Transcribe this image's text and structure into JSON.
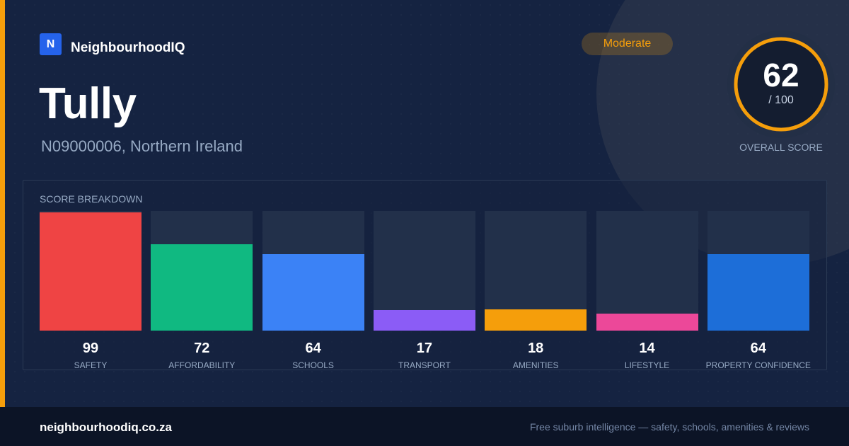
{
  "brand": {
    "logo_letter": "N",
    "name": "NeighbourhoodIQ"
  },
  "header": {
    "title": "Tully",
    "subtitle": "N09000006, Northern Ireland"
  },
  "badge": {
    "label": "Moderate",
    "color": "#f59e0b"
  },
  "overall": {
    "score": "62",
    "max_label": "/ 100",
    "label": "OVERALL SCORE",
    "value": 62,
    "max": 100,
    "ring_color": "#f59e0b"
  },
  "breakdown": {
    "title": "SCORE BREAKDOWN",
    "items": [
      {
        "label": "SAFETY",
        "score": "99",
        "value": 99,
        "color": "#ef4444"
      },
      {
        "label": "AFFORDABILITY",
        "score": "72",
        "value": 72,
        "color": "#10b981"
      },
      {
        "label": "SCHOOLS",
        "score": "64",
        "value": 64,
        "color": "#3b82f6"
      },
      {
        "label": "TRANSPORT",
        "score": "17",
        "value": 17,
        "color": "#8b5cf6"
      },
      {
        "label": "AMENITIES",
        "score": "18",
        "value": 18,
        "color": "#f59e0b"
      },
      {
        "label": "LIFESTYLE",
        "score": "14",
        "value": 14,
        "color": "#ec4899"
      },
      {
        "label": "PROPERTY CONFIDENCE",
        "score": "64",
        "value": 64,
        "color": "#1d6ed8"
      }
    ]
  },
  "footer": {
    "domain": "neighbourhoodiq.co.za",
    "tagline": "Free suburb intelligence — safety, schools, amenities & reviews"
  }
}
